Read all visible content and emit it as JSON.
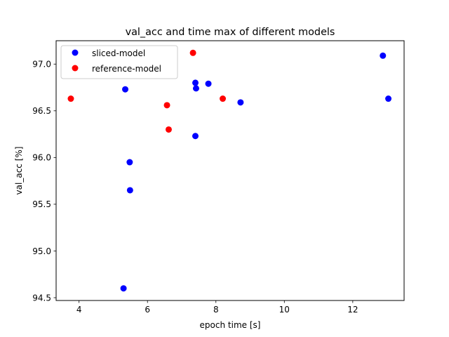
{
  "chart_data": {
    "type": "scatter",
    "title": "val_acc and time max of different models",
    "xlabel": "epoch time [s]",
    "ylabel": "val_acc [%]",
    "xlim": [
      3.33,
      13.5
    ],
    "ylim": [
      94.47,
      97.25
    ],
    "xticks": [
      4,
      6,
      8,
      10,
      12
    ],
    "yticks": [
      94.5,
      95.0,
      95.5,
      96.0,
      96.5,
      97.0
    ],
    "grid": false,
    "legend_position": "top-left",
    "series": [
      {
        "name": "sliced-model",
        "color": "#0000ff",
        "points": [
          {
            "x": 5.35,
            "y": 96.73
          },
          {
            "x": 7.4,
            "y": 96.8
          },
          {
            "x": 7.42,
            "y": 96.74
          },
          {
            "x": 7.78,
            "y": 96.79
          },
          {
            "x": 8.72,
            "y": 96.59
          },
          {
            "x": 7.4,
            "y": 96.23
          },
          {
            "x": 5.48,
            "y": 95.95
          },
          {
            "x": 5.49,
            "y": 95.65
          },
          {
            "x": 5.3,
            "y": 94.6
          },
          {
            "x": 12.88,
            "y": 97.09
          },
          {
            "x": 13.04,
            "y": 96.63
          }
        ]
      },
      {
        "name": "reference-model",
        "color": "#ff0000",
        "points": [
          {
            "x": 3.76,
            "y": 96.63
          },
          {
            "x": 6.57,
            "y": 96.56
          },
          {
            "x": 6.62,
            "y": 96.3
          },
          {
            "x": 7.33,
            "y": 97.12
          },
          {
            "x": 8.2,
            "y": 96.63
          }
        ]
      }
    ]
  }
}
